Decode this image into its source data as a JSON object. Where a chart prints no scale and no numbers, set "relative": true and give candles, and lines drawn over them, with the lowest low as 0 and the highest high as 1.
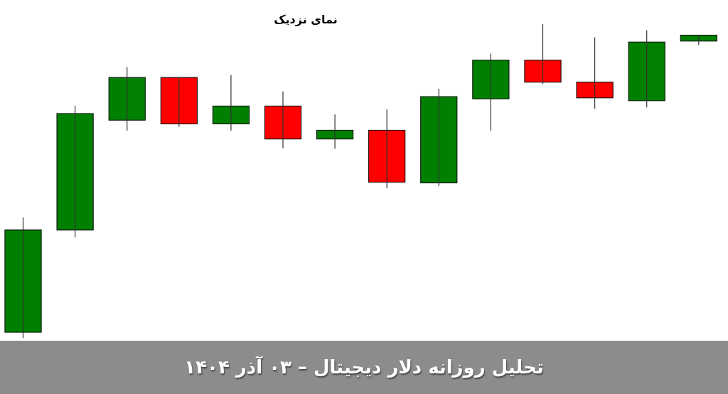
{
  "chart_data": {
    "type": "candlestick",
    "title": "نمای نزدیک",
    "annotations": [
      "تحلیل روزانه دلار دیجیتال – ۰۳ آذر ۱۴۰۴"
    ],
    "categories": [
      null,
      null,
      null,
      null,
      null,
      null,
      null,
      null,
      null,
      null,
      null,
      null,
      null,
      null
    ],
    "ohlc": [
      [
        0.018,
        0.384,
        0,
        0.344
      ],
      [
        0.344,
        0.74,
        0.32,
        0.715
      ],
      [
        0.694,
        0.863,
        0.66,
        0.83
      ],
      [
        0.83,
        0.83,
        0.673,
        0.682
      ],
      [
        0.682,
        0.838,
        0.66,
        0.739
      ],
      [
        0.739,
        0.785,
        0.604,
        0.634
      ],
      [
        0.634,
        0.712,
        0.603,
        0.662
      ],
      [
        0.662,
        0.728,
        0.477,
        0.496
      ],
      [
        0.494,
        0.794,
        0.484,
        0.769
      ],
      [
        0.762,
        0.906,
        0.66,
        0.885
      ],
      [
        0.885,
        1,
        0.809,
        0.815
      ],
      [
        0.815,
        0.958,
        0.73,
        0.765
      ],
      [
        0.756,
        0.981,
        0.735,
        0.943
      ],
      [
        0.946,
        0.965,
        0.933,
        0.965
      ]
    ],
    "colors": [
      "#008000",
      "#008000",
      "#008000",
      "#ff0000",
      "#008000",
      "#ff0000",
      "#008000",
      "#ff0000",
      "#008000",
      "#008000",
      "#ff0000",
      "#ff0000",
      "#008000",
      "#008000"
    ],
    "relative": true
  }
}
